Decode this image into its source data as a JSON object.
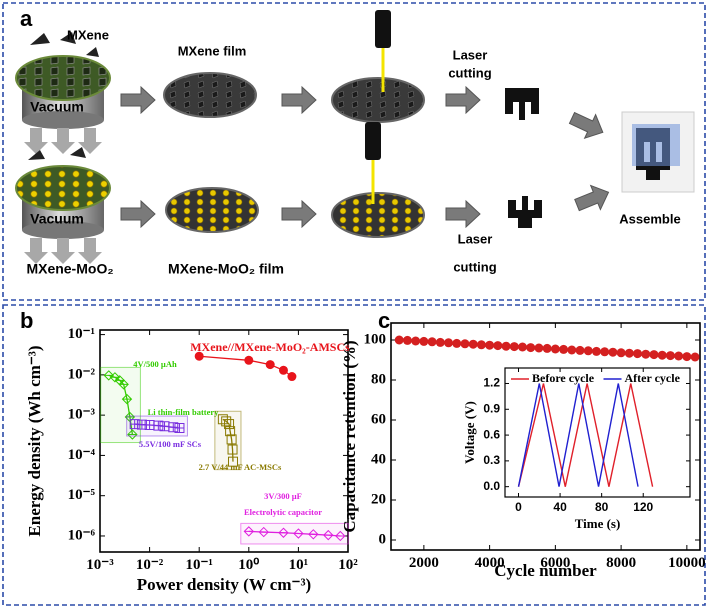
{
  "panel_a": {
    "label": "a",
    "top": {
      "material": "MXene",
      "vacuum": "Vacuum",
      "film": "MXene film",
      "cutting": [
        "Laser",
        "cutting"
      ]
    },
    "bottom": {
      "material": "MXene-MoO₂",
      "vacuum": "Vacuum",
      "film": "MXene-MoO₂ film",
      "cutting": [
        "Laser",
        "cutting"
      ]
    },
    "assemble": "Assemble"
  },
  "chart_data": [
    {
      "type": "line",
      "panel": "b",
      "x_label": "Power density (W cm⁻³)",
      "y_label": "Energy density (Wh cm⁻³)",
      "xlog": true,
      "ylog": true,
      "xlim": [
        0.001,
        100
      ],
      "ylim": [
        4e-07,
        0.13
      ],
      "xticks": [
        {
          "value": 0.001,
          "label": "10⁻³"
        },
        {
          "value": 0.01,
          "label": "10⁻²"
        },
        {
          "value": 0.1,
          "label": "10⁻¹"
        },
        {
          "value": 1,
          "label": "10⁰"
        },
        {
          "value": 10,
          "label": "10¹"
        },
        {
          "value": 100,
          "label": "10²"
        }
      ],
      "yticks": [
        {
          "value": 1e-06,
          "label": "10⁻⁶"
        },
        {
          "value": 1e-05,
          "label": "10⁻⁵"
        },
        {
          "value": 0.0001,
          "label": "10⁻⁴"
        },
        {
          "value": 0.001,
          "label": "10⁻³"
        },
        {
          "value": 0.01,
          "label": "10⁻²"
        },
        {
          "value": 0.1,
          "label": "10⁻¹"
        }
      ],
      "series": [
        {
          "labels": [
            "MXene//MXene-MoO₂-AMSCs"
          ],
          "color": "#e8141b",
          "marker": "circle",
          "box": false,
          "x": [
            0.1,
            1,
            2.7,
            5,
            7.4
          ],
          "values": [
            0.029,
            0.023,
            0.018,
            0.013,
            0.0091
          ]
        },
        {
          "labels": [
            "4V/500 µAh",
            "Li thin-film battery"
          ],
          "color": "#33cc00",
          "marker": "open-diamond",
          "box": true,
          "x": [
            0.0015,
            0.002,
            0.0025,
            0.003,
            0.0035,
            0.004,
            0.0045
          ],
          "values": [
            0.0097,
            0.0087,
            0.0073,
            0.0058,
            0.0025,
            0.0009,
            0.00033
          ]
        },
        {
          "labels": [
            "5.5V/100 mF SCs"
          ],
          "color": "#7a2ee0",
          "marker": "open-plus",
          "box": true,
          "x": [
            0.005,
            0.007,
            0.01,
            0.015,
            0.02,
            0.03,
            0.04
          ],
          "values": [
            0.0006,
            0.00058,
            0.00057,
            0.00055,
            0.00053,
            0.0005,
            0.00048
          ]
        },
        {
          "labels": [
            "2.7 V/44 mF AC-MSCs"
          ],
          "color": "#8a7a00",
          "marker": "open-square",
          "box": true,
          "x": [
            0.3,
            0.35,
            0.4,
            0.42,
            0.45,
            0.47,
            0.48
          ],
          "values": [
            0.00079,
            0.0007,
            0.0006,
            0.0004,
            0.00025,
            0.00014,
            7e-05
          ]
        },
        {
          "labels": [
            "3V/300 µF",
            "Electrolytic capacitor"
          ],
          "color": "#e020e0",
          "marker": "open-diamond",
          "box": true,
          "x": [
            1,
            2,
            5,
            10,
            20,
            40,
            70
          ],
          "values": [
            1.3e-06,
            1.25e-06,
            1.2e-06,
            1.15e-06,
            1.1e-06,
            1.05e-06,
            1e-06
          ]
        }
      ]
    },
    {
      "type": "line",
      "panel": "c",
      "x_label": "Cycle number",
      "y_label": "Capacitance retention (%)",
      "xlim": [
        1000,
        10400
      ],
      "ylim": [
        -5,
        108.5
      ],
      "xticks": [
        2000,
        4000,
        6000,
        8000,
        10000
      ],
      "yticks": [
        0,
        20,
        40,
        60,
        80,
        100
      ],
      "x": [
        1250,
        1500,
        1750,
        2000,
        2250,
        2500,
        2750,
        3000,
        3250,
        3500,
        3750,
        4000,
        4250,
        4500,
        4750,
        5000,
        5250,
        5500,
        5750,
        6000,
        6250,
        6500,
        6750,
        7000,
        7250,
        7500,
        7750,
        8000,
        8250,
        8500,
        8750,
        9000,
        9250,
        9500,
        9750,
        10000,
        10250
      ],
      "series": [
        {
          "color": "#d42020",
          "marker": "circle",
          "values": [
            100.0,
            99.8,
            99.5,
            99.3,
            99.1,
            98.8,
            98.6,
            98.3,
            98.1,
            97.9,
            97.6,
            97.4,
            97.2,
            96.9,
            96.7,
            96.5,
            96.2,
            96.0,
            95.8,
            95.5,
            95.3,
            95.0,
            94.8,
            94.6,
            94.3,
            94.1,
            93.9,
            93.6,
            93.4,
            93.2,
            92.9,
            92.7,
            92.4,
            92.2,
            92.0,
            91.7,
            91.5
          ]
        }
      ]
    },
    {
      "type": "line",
      "x_label": "Time (s)",
      "y_label": "Voltage (V)",
      "legend": "top",
      "xlim": [
        -13,
        165
      ],
      "ylim": [
        -0.12,
        1.38
      ],
      "xticks": [
        0,
        40,
        80,
        120
      ],
      "yticks": [
        {
          "value": 0,
          "label": "0.0"
        },
        0.3,
        0.6,
        0.9,
        1.2
      ],
      "series": [
        {
          "name": "Before cycle",
          "color": "#e0202a",
          "marker": "none",
          "x": [
            0,
            24,
            45,
            66,
            87,
            108,
            129
          ],
          "values": [
            0,
            1.2,
            0,
            1.2,
            0,
            1.2,
            0
          ]
        },
        {
          "name": "After cycle",
          "color": "#2020d0",
          "marker": "none",
          "x": [
            0,
            20,
            39,
            58,
            77,
            96,
            115
          ],
          "values": [
            0,
            1.2,
            0,
            1.2,
            0,
            1.2,
            0
          ]
        }
      ]
    }
  ]
}
